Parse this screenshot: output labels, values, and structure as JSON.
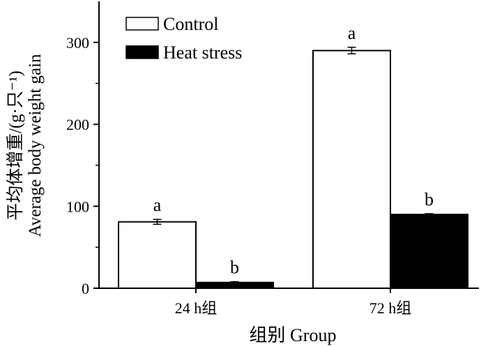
{
  "chart_data": {
    "type": "bar",
    "categories": [
      "24 h组",
      "72 h组"
    ],
    "series": [
      {
        "name": "Control",
        "color": "#ffffff",
        "values": [
          81,
          290
        ],
        "errors": [
          3,
          4
        ],
        "sig_labels": [
          "a",
          "a"
        ]
      },
      {
        "name": "Heat stress",
        "color": "#000000",
        "values": [
          7,
          90
        ],
        "errors": [
          1,
          1
        ],
        "sig_labels": [
          "b",
          "b"
        ]
      }
    ],
    "xlabel": "组别 Group",
    "ylabel_lines": [
      "平均体增重/(g·只⁻¹)",
      "Average body weight gain"
    ],
    "ylim": [
      0,
      350
    ],
    "yticks": [
      0,
      100,
      200,
      300
    ],
    "legend_position": "top-left",
    "grid": false
  }
}
